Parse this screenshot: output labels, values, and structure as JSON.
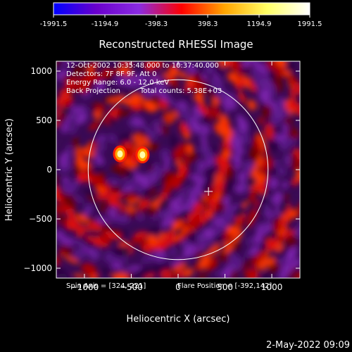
{
  "colorbar": {
    "ticks": [
      "-1991.5",
      "-1194.9",
      "-398.3",
      "398.3",
      "1194.9",
      "1991.5"
    ],
    "min": -1991.5,
    "max": 1991.5,
    "colors": [
      "#0000ff",
      "#6a00cc",
      "#8a2be2",
      "#ff0000",
      "#ffa500",
      "#ffff66",
      "#ffffff"
    ]
  },
  "chart_data": {
    "type": "heatmap",
    "title": "Reconstructed RHESSI Image",
    "xlabel": "Heliocentric X (arcsec)",
    "ylabel": "Heliocentric Y (arcsec)",
    "xlim": [
      -1300,
      1300
    ],
    "ylim": [
      -1100,
      1100
    ],
    "xticks": [
      {
        "value": -1000,
        "label": "−1000"
      },
      {
        "value": -500,
        "label": "−500"
      },
      {
        "value": 0,
        "label": "0"
      },
      {
        "value": 500,
        "label": "500"
      },
      {
        "value": 1000,
        "label": "1000"
      }
    ],
    "yticks": [
      {
        "value": 1000,
        "label": "1000"
      },
      {
        "value": 500,
        "label": "500"
      },
      {
        "value": 0,
        "label": "0"
      },
      {
        "value": -500,
        "label": "−500"
      },
      {
        "value": -1000,
        "label": "−1000"
      }
    ],
    "solar_disk": {
      "center": [
        0,
        0
      ],
      "radius": 960
    },
    "flare_marker": [
      324,
      -221
    ],
    "bright_sources": [
      {
        "x": -620,
        "y": 160,
        "value": 1991.5
      },
      {
        "x": -380,
        "y": 150,
        "value": 1900
      }
    ],
    "annotations": {
      "time_range": "12-Oct-2002 10:35:48.000 to 10:37:40.000",
      "detectors": "Detectors: 7F 8F 9F, Att 0",
      "energy_range": "Energy Range: 6.0 - 12.0 keV",
      "method": "Back Projection",
      "total_counts": "Total counts: 5.38E+03",
      "spin_axis": "Spin Axis = [324,-221]",
      "flare_position": "Flare Position = [-392,142]"
    },
    "footer_date": "2-May-2022 09:09"
  }
}
